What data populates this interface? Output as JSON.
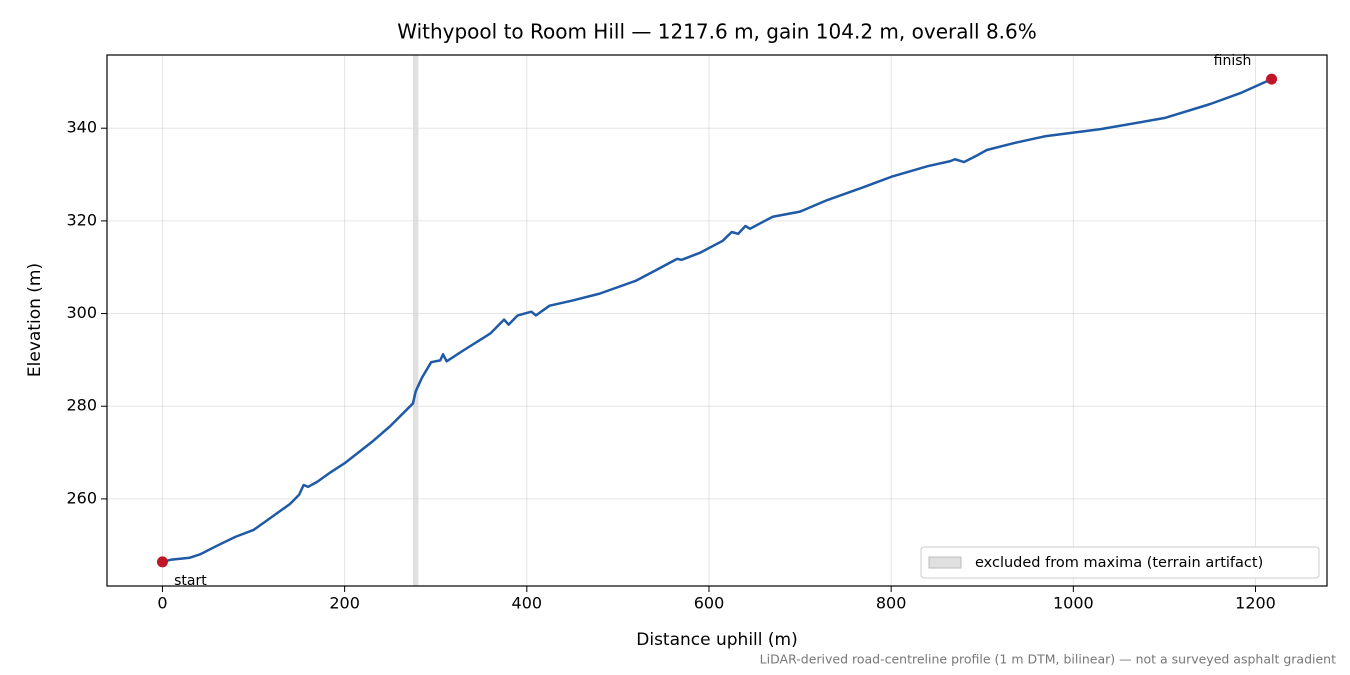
{
  "chart_data": {
    "type": "line",
    "title": "Withypool to Room Hill — 1217.6 m, gain 104.2 m, overall 8.6%",
    "x_label": "Distance uphill (m)",
    "y_label": "Elevation (m)",
    "footnote": "LiDAR-derived road-centreline profile (1 m DTM, bilinear) — not a surveyed asphalt gradient",
    "xlim": [
      -60.88,
      1278.48
    ],
    "ylim": [
      241.2,
      355.8
    ],
    "xticks": [
      0,
      200,
      400,
      600,
      800,
      1000,
      1200
    ],
    "yticks": [
      260,
      280,
      300,
      320,
      340
    ],
    "grid": true,
    "legend": "lower right",
    "spans": [
      {
        "name": "excluded from maxima (terrain artifact)",
        "x": [
          275,
          281
        ],
        "color": "#d3d3d3"
      }
    ],
    "series": [
      {
        "color": "#1f5aa6",
        "x": [
          0,
          10,
          30,
          41,
          60,
          80,
          100,
          120,
          140,
          150,
          155,
          160,
          170,
          185,
          200,
          230,
          250,
          275,
          278,
          285,
          295,
          305,
          308,
          312,
          330,
          360,
          375,
          380,
          390,
          405,
          410,
          425,
          450,
          480,
          520,
          545,
          565,
          570,
          590,
          615,
          625,
          632,
          640,
          645,
          670,
          700,
          730,
          770,
          800,
          840,
          865,
          870,
          880,
          895,
          905,
          935,
          970,
          1030,
          1100,
          1150,
          1185,
          1217.6
        ],
        "values": [
          246.4,
          246.9,
          247.3,
          248.0,
          249.9,
          251.8,
          253.3,
          256.1,
          258.9,
          260.9,
          263.0,
          262.6,
          263.7,
          265.8,
          267.7,
          272.3,
          275.7,
          280.6,
          283.2,
          286.2,
          289.5,
          289.9,
          291.2,
          289.7,
          292.0,
          295.7,
          298.7,
          297.6,
          299.6,
          300.4,
          299.6,
          301.7,
          302.8,
          304.3,
          307.1,
          309.7,
          311.8,
          311.6,
          313.1,
          315.7,
          317.6,
          317.2,
          318.9,
          318.3,
          320.9,
          322.0,
          324.5,
          327.3,
          329.5,
          331.8,
          332.9,
          333.3,
          332.7,
          334.2,
          335.3,
          336.8,
          338.3,
          339.8,
          342.2,
          345.2,
          347.7,
          350.6
        ]
      }
    ],
    "markers": [
      {
        "label": "start",
        "x": 0,
        "y": 246.4,
        "color": "#c0162a"
      },
      {
        "label": "finish",
        "x": 1217.6,
        "y": 350.6,
        "color": "#c0162a"
      }
    ]
  }
}
